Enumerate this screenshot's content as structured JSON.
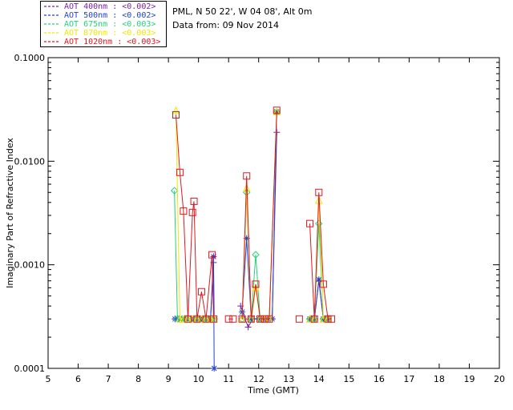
{
  "header": {
    "site": "PML, N 50 22', W 04 08', Alt 0m",
    "date_line": "Data from: 09 Nov 2014"
  },
  "legend": {
    "items": [
      {
        "label": "AOT  400nm : <0.002>",
        "color": "#7a1fa2"
      },
      {
        "label": "AOT  500nm : <0.002>",
        "color": "#1f3fd6"
      },
      {
        "label": "AOT  675nm : <0.003>",
        "color": "#22d27a"
      },
      {
        "label": "AOT  870nm : <0.003>",
        "color": "#f2e600"
      },
      {
        "label": "AOT 1020nm : <0.003>",
        "color": "#e3171d"
      }
    ]
  },
  "chart_data": {
    "type": "line",
    "xlabel": "Time (GMT)",
    "ylabel": "Imaginary Part of Refractive Index",
    "xlim": [
      5,
      20
    ],
    "ylim": [
      0.0001,
      0.1
    ],
    "yscale": "log",
    "x_ticks": [
      "5",
      "6",
      "7",
      "8",
      "9",
      "10",
      "11",
      "12",
      "13",
      "14",
      "15",
      "16",
      "17",
      "18",
      "19",
      "20"
    ],
    "y_ticks": [
      "0.0001",
      "0.0010",
      "0.0100",
      "0.1000"
    ],
    "grid": false,
    "legend_position": "top-left (outside)",
    "series": [
      {
        "name": "AOT  400nm : <0.002>",
        "color": "#7a1fa2",
        "marker": "plus",
        "points": [
          [
            9.22,
            0.0003
          ],
          [
            9.35,
            0.0003
          ],
          [
            9.5,
            0.0003
          ],
          [
            9.62,
            0.0003
          ],
          [
            9.8,
            0.0003
          ],
          [
            9.95,
            0.0003
          ],
          [
            10.1,
            0.0003
          ],
          [
            10.25,
            0.0003
          ],
          [
            10.4,
            0.0003
          ],
          [
            10.5,
            0.00105
          ],
          [
            10.52,
            0.0003
          ],
          null,
          [
            11.4,
            0.0004
          ],
          [
            11.55,
            0.0003
          ],
          [
            11.65,
            0.00025
          ],
          [
            11.8,
            0.0003
          ],
          [
            12.0,
            0.0003
          ],
          [
            12.15,
            0.0003
          ],
          [
            12.3,
            0.0003
          ],
          [
            12.45,
            0.0003
          ],
          [
            12.6,
            0.019
          ],
          null,
          [
            13.7,
            0.0003
          ],
          [
            13.85,
            0.0003
          ],
          [
            14.0,
            0.0007
          ],
          [
            14.15,
            0.0003
          ],
          [
            14.3,
            0.0003
          ]
        ]
      },
      {
        "name": "AOT  500nm : <0.002>",
        "color": "#1f3fd6",
        "marker": "asterisk",
        "points": [
          [
            9.22,
            0.0003
          ],
          [
            9.35,
            0.0003
          ],
          [
            9.5,
            0.0003
          ],
          [
            9.62,
            0.0003
          ],
          [
            9.8,
            0.0003
          ],
          [
            9.95,
            0.0003
          ],
          [
            10.1,
            0.0003
          ],
          [
            10.25,
            0.0003
          ],
          [
            10.4,
            0.0003
          ],
          [
            10.5,
            0.0012
          ],
          [
            10.52,
            0.0001
          ],
          null,
          [
            11.45,
            0.00035
          ],
          [
            11.6,
            0.0018
          ],
          [
            11.75,
            0.0003
          ],
          [
            12.0,
            0.0003
          ],
          [
            12.15,
            0.0003
          ],
          [
            12.3,
            0.0003
          ],
          [
            12.45,
            0.0003
          ],
          [
            12.6,
            0.03
          ],
          null,
          [
            13.7,
            0.0003
          ],
          [
            13.85,
            0.0003
          ],
          [
            14.0,
            0.00072
          ],
          [
            14.15,
            0.0003
          ],
          [
            14.3,
            0.0003
          ]
        ]
      },
      {
        "name": "AOT  675nm : <0.003>",
        "color": "#22d27a",
        "marker": "diamond",
        "points": [
          [
            9.2,
            0.0052
          ],
          [
            9.3,
            0.0003
          ],
          [
            9.45,
            0.0003
          ],
          [
            9.6,
            0.0003
          ],
          [
            9.8,
            0.0003
          ],
          [
            9.95,
            0.0003
          ],
          [
            10.1,
            0.0003
          ],
          [
            10.25,
            0.0003
          ],
          [
            10.4,
            0.0003
          ],
          [
            10.52,
            0.0003
          ],
          null,
          [
            11.45,
            0.0003
          ],
          [
            11.6,
            0.005
          ],
          [
            11.75,
            0.0003
          ],
          [
            11.9,
            0.00125
          ],
          [
            12.05,
            0.0003
          ],
          [
            12.2,
            0.0003
          ],
          [
            12.35,
            0.0003
          ],
          [
            12.6,
            0.03
          ],
          null,
          [
            13.7,
            0.0003
          ],
          [
            13.85,
            0.0003
          ],
          [
            14.0,
            0.0025
          ],
          [
            14.15,
            0.0003
          ],
          [
            14.3,
            0.0003
          ]
        ]
      },
      {
        "name": "AOT  870nm : <0.003>",
        "color": "#f2e600",
        "marker": "triangle",
        "points": [
          [
            9.25,
            0.031
          ],
          [
            9.38,
            0.0003
          ],
          [
            9.5,
            0.0003
          ],
          [
            9.65,
            0.0003
          ],
          [
            9.8,
            0.0003
          ],
          [
            9.95,
            0.0003
          ],
          [
            10.1,
            0.0003
          ],
          [
            10.25,
            0.0003
          ],
          [
            10.4,
            0.0003
          ],
          [
            10.52,
            0.0003
          ],
          null,
          [
            11.45,
            0.0003
          ],
          [
            11.6,
            0.0055
          ],
          [
            11.75,
            0.0003
          ],
          [
            11.9,
            0.0006
          ],
          [
            12.05,
            0.0003
          ],
          [
            12.2,
            0.0003
          ],
          [
            12.35,
            0.0003
          ],
          [
            12.6,
            0.03
          ],
          null,
          [
            13.7,
            0.0003
          ],
          [
            13.85,
            0.0003
          ],
          [
            14.0,
            0.0042
          ],
          [
            14.15,
            0.0003
          ],
          [
            14.3,
            0.0003
          ]
        ]
      },
      {
        "name": "AOT 1020nm : <0.003>",
        "color": "#e3171d",
        "marker": "square",
        "points": [
          [
            9.25,
            0.028
          ],
          [
            9.38,
            0.0078
          ],
          [
            9.5,
            0.0033
          ],
          [
            9.65,
            0.0003
          ],
          [
            9.8,
            0.0032
          ],
          [
            9.85,
            0.0041
          ],
          [
            9.95,
            0.0003
          ],
          [
            10.1,
            0.00055
          ],
          [
            10.25,
            0.0003
          ],
          [
            10.45,
            0.00125
          ],
          [
            10.5,
            0.0003
          ],
          null,
          [
            11.0,
            0.0003
          ],
          [
            11.15,
            0.0003
          ],
          null,
          [
            11.45,
            0.0003
          ],
          [
            11.6,
            0.0072
          ],
          [
            11.75,
            0.0003
          ],
          [
            11.9,
            0.00065
          ],
          [
            12.05,
            0.0003
          ],
          [
            12.2,
            0.0003
          ],
          [
            12.35,
            0.0003
          ],
          [
            12.6,
            0.031
          ],
          null,
          [
            13.35,
            0.0003
          ],
          null,
          [
            13.7,
            0.0025
          ],
          [
            13.85,
            0.0003
          ],
          [
            14.0,
            0.005
          ],
          [
            14.15,
            0.00065
          ],
          [
            14.3,
            0.0003
          ],
          [
            14.42,
            0.0003
          ]
        ]
      }
    ]
  }
}
